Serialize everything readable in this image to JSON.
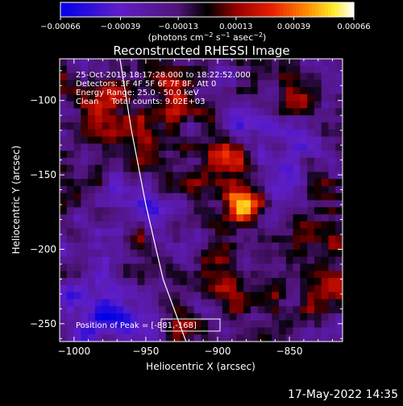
{
  "chart_data": {
    "type": "heatmap",
    "title": "Reconstructed RHESSI Image",
    "xlabel": "Heliocentric X (arcsec)",
    "ylabel": "Heliocentric Y (arcsec)",
    "xlim": [
      -1010,
      -813
    ],
    "ylim": [
      -262,
      -72
    ],
    "x_ticks": [
      -1000,
      -950,
      -900,
      -850
    ],
    "y_ticks": [
      -250,
      -200,
      -150,
      -100
    ],
    "x_tick_labels": [
      "−1000",
      "−950",
      "−900",
      "−850"
    ],
    "y_tick_labels": [
      "−250",
      "−200",
      "−150",
      "−100"
    ],
    "colorbar": {
      "range": [
        -0.00066,
        0.00066
      ],
      "ticks": [
        -0.00066,
        -0.00039,
        -0.00013,
        0.00013,
        0.00039,
        0.00066
      ],
      "tick_labels": [
        "−0.00066",
        "−0.00039",
        "−0.00013",
        "0.00013",
        "0.00039",
        "0.00066"
      ],
      "unit_parts": [
        "(photons cm",
        "−2",
        " s",
        "−1",
        " asec",
        "−2",
        ")"
      ]
    },
    "sources": [
      {
        "x": -885,
        "y": -170,
        "peak": 0.00066,
        "sigma_x": 9,
        "sigma_y": 12
      },
      {
        "x": -890,
        "y": -138,
        "peak": 0.0004,
        "sigma_x": 14,
        "sigma_y": 14
      },
      {
        "x": -935,
        "y": -95,
        "peak": 0.00035,
        "sigma_x": 16,
        "sigma_y": 18
      },
      {
        "x": -980,
        "y": -100,
        "peak": 0.0003,
        "sigma_x": 18,
        "sigma_y": 14
      },
      {
        "x": -955,
        "y": -205,
        "peak": 0.00035,
        "sigma_x": 10,
        "sigma_y": 22
      },
      {
        "x": -960,
        "y": -130,
        "peak": 0.0003,
        "sigma_x": 12,
        "sigma_y": 14
      },
      {
        "x": -1000,
        "y": -160,
        "peak": 0.00025,
        "sigma_x": 12,
        "sigma_y": 18
      },
      {
        "x": -830,
        "y": -180,
        "peak": 0.0003,
        "sigma_x": 14,
        "sigma_y": 24
      },
      {
        "x": -845,
        "y": -95,
        "peak": 0.00028,
        "sigma_x": 14,
        "sigma_y": 14
      },
      {
        "x": -900,
        "y": -225,
        "peak": 0.00028,
        "sigma_x": 20,
        "sigma_y": 14
      },
      {
        "x": -860,
        "y": -240,
        "peak": 0.00022,
        "sigma_x": 16,
        "sigma_y": 14
      },
      {
        "x": -925,
        "y": -250,
        "peak": 0.00035,
        "sigma_x": 8,
        "sigma_y": 8
      },
      {
        "x": -820,
        "y": -230,
        "peak": 0.00025,
        "sigma_x": 10,
        "sigma_y": 12
      },
      {
        "x": -915,
        "y": -165,
        "peak": 0.00022,
        "sigma_x": 10,
        "sigma_y": 16
      },
      {
        "x": -960,
        "y": -175,
        "peak": -0.00025,
        "sigma_x": 16,
        "sigma_y": 16
      },
      {
        "x": -975,
        "y": -240,
        "peak": -0.00028,
        "sigma_x": 24,
        "sigma_y": 20
      },
      {
        "x": -870,
        "y": -120,
        "peak": -0.0002,
        "sigma_x": 16,
        "sigma_y": 12
      },
      {
        "x": -850,
        "y": -150,
        "peak": -0.00022,
        "sigma_x": 12,
        "sigma_y": 14
      }
    ],
    "limb": [
      [
        -968,
        -72
      ],
      [
        -960,
        -120
      ],
      [
        -950,
        -170
      ],
      [
        -938,
        -220
      ],
      [
        -922,
        -262
      ]
    ],
    "peak_box": {
      "x": -881,
      "y": -168
    }
  },
  "info": {
    "line1": "25-Oct-2013 18:17:28.000 to 18:22:52.000",
    "line2": "Detectors: 3F 4F 5F 6F 7F 8F, Att 0",
    "line3": "Energy Range: 25.0 - 50.0 keV",
    "line4": "Clean     Total counts: 9.02E+03",
    "peak_label": "Position of Peak = [-881,-168]"
  },
  "footer": {
    "date": "17-May-2022 14:35"
  }
}
